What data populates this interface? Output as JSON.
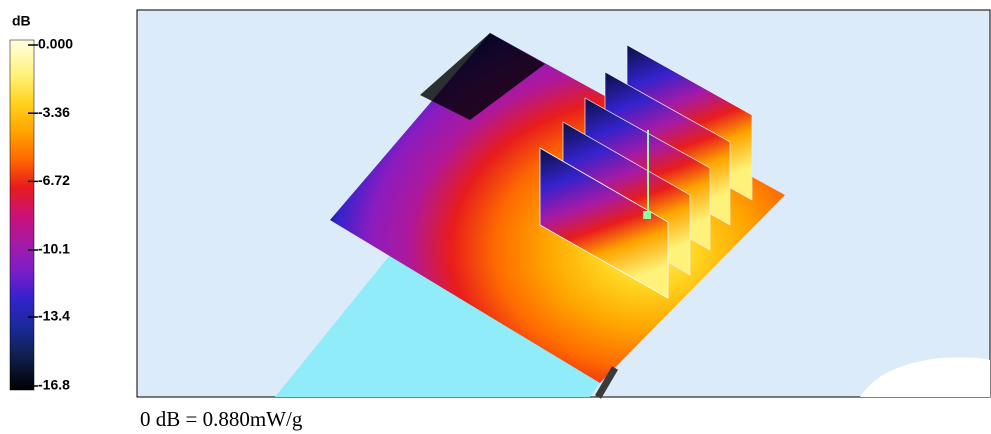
{
  "colorbar": {
    "unit": "dB",
    "ticks": [
      {
        "value": 0,
        "label": "0.000"
      },
      {
        "value": -3.36,
        "label": "-3.36"
      },
      {
        "value": -6.72,
        "label": "-6.72"
      },
      {
        "value": -10.1,
        "label": "-10.1"
      },
      {
        "value": -13.4,
        "label": "-13.4"
      },
      {
        "value": -16.8,
        "label": "-16.8"
      }
    ]
  },
  "caption": "0 dB = 0.880mW/g"
}
